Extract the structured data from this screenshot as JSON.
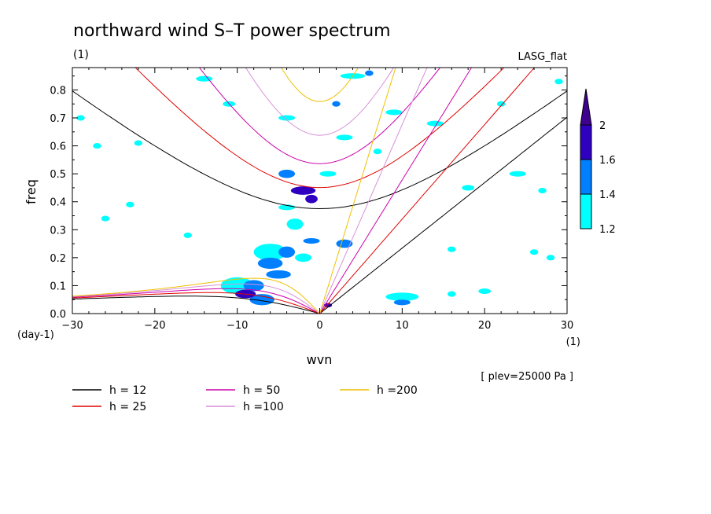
{
  "chart_data": {
    "type": "heatmap",
    "title": "northward wind S–T power spectrum",
    "unit_top_left": "(1)",
    "model_label": "LASG_flat",
    "xlabel": "wvn",
    "ylabel": "freq",
    "x_unit": "(1)",
    "y_unit": "(day-1)",
    "level_note": "[ plev=25000 Pa ]",
    "xlim": [
      -30,
      30
    ],
    "ylim": [
      0,
      0.88
    ],
    "x_ticks": [
      "−30",
      "−20",
      "−10",
      "0",
      "10",
      "20",
      "30"
    ],
    "x_tick_values": [
      -30,
      -20,
      -10,
      0,
      10,
      20,
      30
    ],
    "y_ticks": [
      "0.0",
      "0.1",
      "0.2",
      "0.3",
      "0.4",
      "0.5",
      "0.6",
      "0.7",
      "0.8"
    ],
    "y_tick_values": [
      0,
      0.1,
      0.2,
      0.3,
      0.4,
      0.5,
      0.6,
      0.7,
      0.8
    ],
    "colorbar": {
      "levels": [
        "1.2",
        "1.4",
        "1.6",
        "2"
      ],
      "level_values": [
        1.2,
        1.4,
        1.6,
        2.0
      ],
      "colors": [
        "#00ffff",
        "#0080ff",
        "#3000c0",
        "#400090"
      ]
    },
    "blobs": [
      {
        "x": -9,
        "y": 0.07,
        "w": 2.5,
        "h": 0.03,
        "level": 2
      },
      {
        "x": -8,
        "y": 0.1,
        "w": 2.5,
        "h": 0.04,
        "level": 1
      },
      {
        "x": -7,
        "y": 0.05,
        "w": 3,
        "h": 0.04,
        "level": 1
      },
      {
        "x": -6,
        "y": 0.18,
        "w": 3,
        "h": 0.04,
        "level": 1
      },
      {
        "x": -4,
        "y": 0.22,
        "w": 2,
        "h": 0.04,
        "level": 1
      },
      {
        "x": -5,
        "y": 0.14,
        "w": 3,
        "h": 0.03,
        "level": 1
      },
      {
        "x": -2,
        "y": 0.2,
        "w": 2,
        "h": 0.03,
        "level": 0
      },
      {
        "x": -1,
        "y": 0.26,
        "w": 2,
        "h": 0.02,
        "level": 1
      },
      {
        "x": 3,
        "y": 0.25,
        "w": 2,
        "h": 0.03,
        "level": 1
      },
      {
        "x": -3,
        "y": 0.32,
        "w": 2,
        "h": 0.04,
        "level": 0
      },
      {
        "x": -2,
        "y": 0.44,
        "w": 3,
        "h": 0.03,
        "level": 2
      },
      {
        "x": -4,
        "y": 0.5,
        "w": 2,
        "h": 0.03,
        "level": 1
      },
      {
        "x": -1,
        "y": 0.41,
        "w": 1.5,
        "h": 0.03,
        "level": 2
      },
      {
        "x": 6,
        "y": 0.86,
        "w": 1,
        "h": 0.02,
        "level": 1
      },
      {
        "x": 2,
        "y": 0.75,
        "w": 1,
        "h": 0.02,
        "level": 1
      },
      {
        "x": 10,
        "y": 0.04,
        "w": 2,
        "h": 0.02,
        "level": 1
      },
      {
        "x": 1,
        "y": 0.03,
        "w": 1,
        "h": 0.015,
        "level": 2
      },
      {
        "x": 10,
        "y": 0.06,
        "w": 4,
        "h": 0.03,
        "level": 0
      },
      {
        "x": -10,
        "y": 0.1,
        "w": 4,
        "h": 0.06,
        "level": 0
      },
      {
        "x": -6,
        "y": 0.22,
        "w": 4,
        "h": 0.06,
        "level": 0
      },
      {
        "x": -4,
        "y": 0.38,
        "w": 2,
        "h": 0.02,
        "level": 0
      },
      {
        "x": 1,
        "y": 0.5,
        "w": 2,
        "h": 0.02,
        "level": 0
      },
      {
        "x": 4,
        "y": 0.85,
        "w": 3,
        "h": 0.02,
        "level": 0
      },
      {
        "x": -14,
        "y": 0.84,
        "w": 2,
        "h": 0.02,
        "level": 0
      },
      {
        "x": -11,
        "y": 0.75,
        "w": 1.5,
        "h": 0.02,
        "level": 0
      },
      {
        "x": -29,
        "y": 0.7,
        "w": 1,
        "h": 0.02,
        "level": 0
      },
      {
        "x": -27,
        "y": 0.6,
        "w": 1,
        "h": 0.02,
        "level": 0
      },
      {
        "x": -22,
        "y": 0.61,
        "w": 1,
        "h": 0.02,
        "level": 0
      },
      {
        "x": 9,
        "y": 0.72,
        "w": 2,
        "h": 0.02,
        "level": 0
      },
      {
        "x": 14,
        "y": 0.68,
        "w": 2,
        "h": 0.02,
        "level": 0
      },
      {
        "x": 18,
        "y": 0.45,
        "w": 1.5,
        "h": 0.02,
        "level": 0
      },
      {
        "x": 24,
        "y": 0.5,
        "w": 2,
        "h": 0.02,
        "level": 0
      },
      {
        "x": 27,
        "y": 0.44,
        "w": 1,
        "h": 0.02,
        "level": 0
      },
      {
        "x": 16,
        "y": 0.23,
        "w": 1,
        "h": 0.02,
        "level": 0
      },
      {
        "x": 26,
        "y": 0.22,
        "w": 1,
        "h": 0.02,
        "level": 0
      },
      {
        "x": 20,
        "y": 0.08,
        "w": 1.5,
        "h": 0.02,
        "level": 0
      },
      {
        "x": 16,
        "y": 0.07,
        "w": 1,
        "h": 0.02,
        "level": 0
      },
      {
        "x": 28,
        "y": 0.2,
        "w": 1,
        "h": 0.02,
        "level": 0
      },
      {
        "x": -23,
        "y": 0.39,
        "w": 1,
        "h": 0.02,
        "level": 0
      },
      {
        "x": -26,
        "y": 0.34,
        "w": 1,
        "h": 0.02,
        "level": 0
      },
      {
        "x": -16,
        "y": 0.28,
        "w": 1,
        "h": 0.02,
        "level": 0
      },
      {
        "x": 3,
        "y": 0.63,
        "w": 2,
        "h": 0.02,
        "level": 0
      },
      {
        "x": -4,
        "y": 0.7,
        "w": 2,
        "h": 0.02,
        "level": 0
      },
      {
        "x": 7,
        "y": 0.58,
        "w": 1,
        "h": 0.02,
        "level": 0
      },
      {
        "x": 29,
        "y": 0.83,
        "w": 1,
        "h": 0.02,
        "level": 0
      },
      {
        "x": 22,
        "y": 0.75,
        "w": 1,
        "h": 0.02,
        "level": 0
      }
    ],
    "dispersion_curves": [
      {
        "h": 12,
        "color": "#000000"
      },
      {
        "h": 25,
        "color": "#e00000"
      },
      {
        "h": 50,
        "color": "#cc00aa"
      },
      {
        "h": 100,
        "color": "#d890d8"
      },
      {
        "h": 200,
        "color": "#f0c000"
      }
    ],
    "legend": [
      {
        "label": "h = 12",
        "color": "#000000"
      },
      {
        "label": "h = 25",
        "color": "#e00000"
      },
      {
        "label": "h = 50",
        "color": "#cc00aa"
      },
      {
        "label": "h =100",
        "color": "#d890d8"
      },
      {
        "label": "h =200",
        "color": "#f0c000"
      }
    ]
  }
}
